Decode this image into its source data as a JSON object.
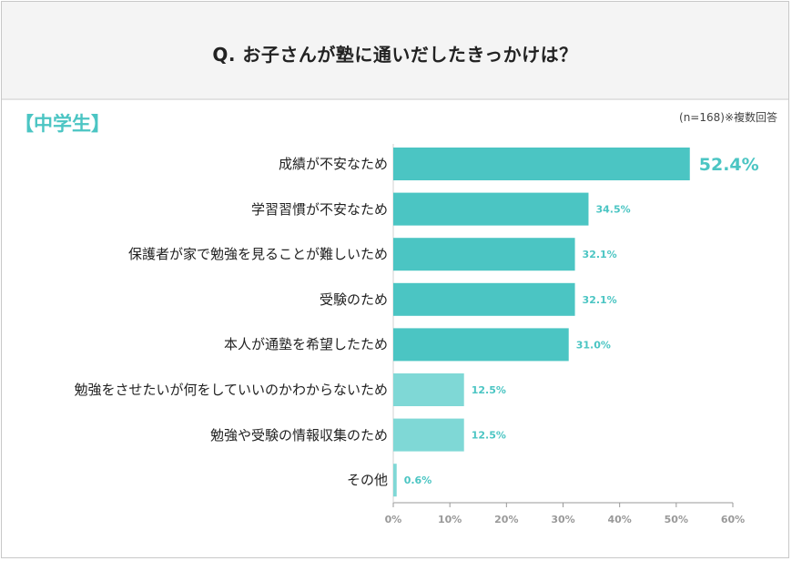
{
  "header": {
    "question": "Q. お子さんが塾に通いだしたきっかけは？"
  },
  "section": {
    "label": "【中学生】",
    "note": "(n=168)※複数回答"
  },
  "colors": {
    "accent": "#4bc5c3",
    "light": "#7fd8d6",
    "axis": "#999999",
    "label": "#4bc5c3"
  },
  "chart_data": {
    "type": "bar",
    "orientation": "horizontal",
    "categories": [
      "成績が不安なため",
      "学習習慣が不安なため",
      "保護者が家で勉強を見ることが難しいため",
      "受験のため",
      "本人が通塾を希望したため",
      "勉強をさせたいが何をしていいのかわからないため",
      "勉強や受験の情報収集のため",
      "その他"
    ],
    "values": [
      52.4,
      34.5,
      32.1,
      32.1,
      31.0,
      12.5,
      12.5,
      0.6
    ],
    "value_labels": [
      "52.4%",
      "34.5%",
      "32.1%",
      "32.1%",
      "31.0%",
      "12.5%",
      "12.5%",
      "0.6%"
    ],
    "highlight_top": 5,
    "xlim": [
      0,
      60
    ],
    "xticks": [
      "0%",
      "10%",
      "20%",
      "30%",
      "40%",
      "50%",
      "60%"
    ],
    "grid": false,
    "legend": "none"
  }
}
